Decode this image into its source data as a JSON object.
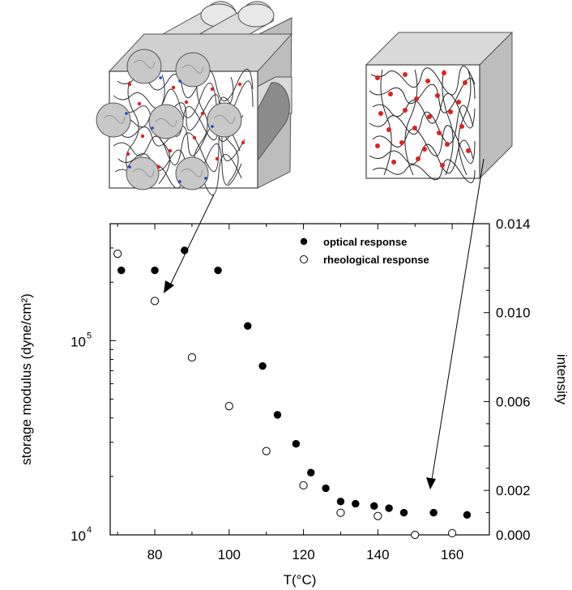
{
  "chart_data": {
    "type": "scatter",
    "xlabel": "T(°C)",
    "ylabel_left": "storage modulus (dyne/cm²)",
    "ylabel_right": "intensity",
    "xlim": [
      68,
      170
    ],
    "ylim_left": [
      10000,
      400000
    ],
    "yscale_left": "log",
    "ylim_right": [
      0.0,
      0.014
    ],
    "x_ticks": [
      80,
      100,
      120,
      140,
      160
    ],
    "x_tick_labels": [
      "80",
      "100",
      "120",
      "140",
      "160"
    ],
    "y_left_ticks": [
      {
        "value": 100000,
        "label": "10",
        "exp": "5"
      },
      {
        "value": 10000,
        "label": "10",
        "exp": "4"
      }
    ],
    "y_right_ticks": [
      0.014,
      0.01,
      0.006,
      0.002,
      0.0
    ],
    "y_right_tick_labels": [
      "0.014",
      "0.010",
      "0.006",
      "0.002",
      "0.000"
    ],
    "legend_position": "top-right",
    "series": [
      {
        "name": "optical response",
        "marker": "filled-circle",
        "axis": "right",
        "points": [
          [
            71,
            0.0119
          ],
          [
            80,
            0.0119
          ],
          [
            88,
            0.0128
          ],
          [
            97,
            0.0119
          ],
          [
            105,
            0.0094
          ],
          [
            109,
            0.0076
          ],
          [
            113,
            0.0054
          ],
          [
            118,
            0.0041
          ],
          [
            122,
            0.0028
          ],
          [
            126,
            0.0021
          ],
          [
            130,
            0.0015
          ],
          [
            134,
            0.0014
          ],
          [
            139,
            0.0013
          ],
          [
            143,
            0.0012
          ],
          [
            147,
            0.001
          ],
          [
            155,
            0.001
          ],
          [
            164,
            0.0009
          ]
        ]
      },
      {
        "name": "rheological response",
        "marker": "open-circle",
        "axis": "left",
        "points": [
          [
            70,
            280000
          ],
          [
            80,
            160000
          ],
          [
            90,
            82000
          ],
          [
            100,
            46000
          ],
          [
            110,
            27000
          ],
          [
            120,
            18000
          ],
          [
            130,
            13000
          ],
          [
            140,
            12500
          ],
          [
            150,
            10000
          ],
          [
            160,
            10200
          ]
        ]
      }
    ]
  }
}
